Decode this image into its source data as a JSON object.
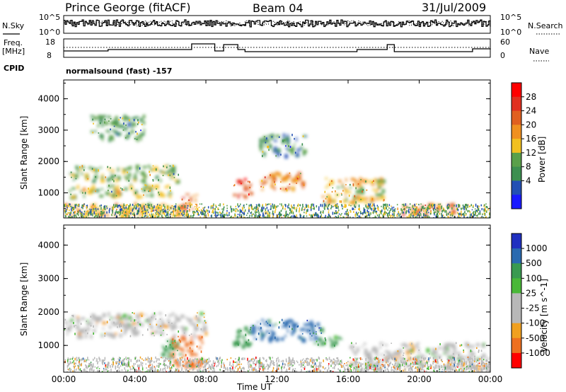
{
  "header": {
    "station": "Prince George (fitACF)",
    "beam": "Beam 04",
    "date": "31/Jul/2009"
  },
  "strips": {
    "nsky_label": "N.Sky",
    "nsky_tick_top": "10^5",
    "nsky_tick_bottom": "10^0",
    "nsearch_label": "N.Search",
    "nsearch_tick_top": "10^5",
    "nsearch_tick_bottom": "10^0",
    "freq_label_1": "Freq.",
    "freq_label_2": "[MHz]",
    "freq_tick_top": "18",
    "freq_tick_bottom": "8",
    "nave_label": "Nave",
    "nave_tick_top": "60",
    "nave_tick_bottom": "0",
    "cpid_label": "CPID",
    "cpid_value": "normalsound (fast) -157"
  },
  "axes": {
    "xlabel": "Time UT",
    "xticks": [
      "00:00",
      "04:00",
      "08:00",
      "12:00",
      "16:00",
      "20:00",
      "00:00"
    ],
    "ylabel": "Slant Range [km]",
    "yticks": [
      "1000",
      "2000",
      "3000",
      "4000"
    ]
  },
  "power_colorbar": {
    "label": "Power [dB]",
    "ticks": [
      "4",
      "8",
      "12",
      "16",
      "20",
      "24",
      "28"
    ],
    "colors": [
      "#1a1aff",
      "#2350b4",
      "#3d8f50",
      "#5aa04a",
      "#f2c020",
      "#f09020",
      "#e06020",
      "#e03020",
      "#ff0000"
    ]
  },
  "velocity_colorbar": {
    "label": "Velocity [m s^-1]",
    "ticks": [
      "1000",
      "500",
      "100",
      "25",
      "-25",
      "-100",
      "-500",
      "-1000"
    ],
    "colors": [
      "#2030c0",
      "#2a6ab0",
      "#3a9a50",
      "#4ab838",
      "#b8b8b8",
      "#b8b8b8",
      "#f0a020",
      "#ee7020",
      "#ff0000"
    ]
  },
  "chart_data": [
    {
      "type": "heatmap",
      "title": "Power",
      "xlabel": "Time UT",
      "ylabel": "Slant Range [km]",
      "xlim": [
        0,
        24
      ],
      "ylim": [
        200,
        4600
      ],
      "zlabel": "Power [dB]",
      "zlim": [
        0,
        32
      ],
      "regions": [
        {
          "t": [
            0.0,
            6.5
          ],
          "r": [
            300,
            700
          ],
          "z": 18
        },
        {
          "t": [
            0.3,
            6.0
          ],
          "r": [
            900,
            1300
          ],
          "z": 14
        },
        {
          "t": [
            0.3,
            6.5
          ],
          "r": [
            1400,
            1900
          ],
          "z": 13
        },
        {
          "t": [
            1.5,
            4.5
          ],
          "r": [
            2700,
            3500
          ],
          "z": 10
        },
        {
          "t": [
            6.5,
            7.5
          ],
          "r": [
            500,
            1000
          ],
          "z": 22
        },
        {
          "t": [
            9.5,
            10.5
          ],
          "r": [
            900,
            1500
          ],
          "z": 26
        },
        {
          "t": [
            11.0,
            13.5
          ],
          "r": [
            1100,
            1700
          ],
          "z": 20
        },
        {
          "t": [
            11.0,
            13.5
          ],
          "r": [
            2200,
            2900
          ],
          "z": 9
        },
        {
          "t": [
            14.5,
            18.0
          ],
          "r": [
            700,
            1500
          ],
          "z": 16
        },
        {
          "t": [
            19.0,
            22.0
          ],
          "r": [
            350,
            700
          ],
          "z": 22
        }
      ]
    },
    {
      "type": "heatmap",
      "title": "Velocity",
      "xlabel": "Time UT",
      "ylabel": "Slant Range [km]",
      "xlim": [
        0,
        24
      ],
      "ylim": [
        200,
        4600
      ],
      "zlabel": "Velocity [m s^-1]",
      "zlim": [
        -1000,
        1000
      ],
      "regions": [
        {
          "t": [
            0.0,
            8.0
          ],
          "r": [
            1300,
            2000
          ],
          "z": 0
        },
        {
          "t": [
            6.0,
            7.8
          ],
          "r": [
            400,
            1300
          ],
          "z": -300
        },
        {
          "t": [
            5.5,
            6.5
          ],
          "r": [
            700,
            1200
          ],
          "z": 150
        },
        {
          "t": [
            9.5,
            10.5
          ],
          "r": [
            1000,
            1600
          ],
          "z": 300
        },
        {
          "t": [
            10.5,
            14.5
          ],
          "r": [
            1200,
            1800
          ],
          "z": 700
        },
        {
          "t": [
            14.0,
            15.5
          ],
          "r": [
            1000,
            1300
          ],
          "z": 150
        },
        {
          "t": [
            16.0,
            24.0
          ],
          "r": [
            300,
            1100
          ],
          "z": 0
        }
      ]
    }
  ]
}
